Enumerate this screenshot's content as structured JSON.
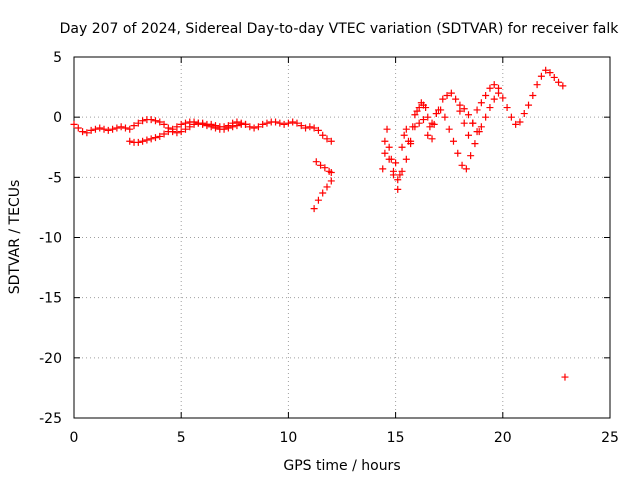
{
  "chart_data": {
    "type": "scatter",
    "title": "Day 207 of 2024, Sidereal Day-to-day VTEC variation (SDTVAR) for receiver falk",
    "xlabel": "GPS time / hours",
    "ylabel": "SDTVAR / TECUs",
    "xlim": [
      0,
      25
    ],
    "ylim": [
      -25,
      5
    ],
    "x_ticks": [
      "0",
      "5",
      "10",
      "15",
      "20",
      "25"
    ],
    "y_ticks": [
      "5",
      "0",
      "-5",
      "-10",
      "-15",
      "-20",
      "-25"
    ],
    "grid": true,
    "marker": "+",
    "series": [
      {
        "name": "SDTVAR",
        "color": "#ff0000",
        "x": [
          0.0,
          0.2,
          0.4,
          0.6,
          0.8,
          1.0,
          1.2,
          1.4,
          1.6,
          1.8,
          2.0,
          2.2,
          2.4,
          2.6,
          2.8,
          3.0,
          3.2,
          3.4,
          3.6,
          3.8,
          4.0,
          4.2,
          4.4,
          4.6,
          4.8,
          5.0,
          5.2,
          5.4,
          5.6,
          5.8,
          6.0,
          6.2,
          6.4,
          6.6,
          6.8,
          7.0,
          7.2,
          7.4,
          7.6,
          7.8,
          8.0,
          8.2,
          8.4,
          8.6,
          8.8,
          9.0,
          9.2,
          9.4,
          9.6,
          9.8,
          10.0,
          10.2,
          10.4,
          10.6,
          10.8,
          11.0,
          11.2,
          11.4,
          11.6,
          11.8,
          12.0,
          2.6,
          2.8,
          3.0,
          3.2,
          3.4,
          3.6,
          3.8,
          4.0,
          4.2,
          4.4,
          4.6,
          4.8,
          5.0,
          5.2,
          5.4,
          5.6,
          5.8,
          6.0,
          6.2,
          6.4,
          6.6,
          6.8,
          7.0,
          7.2,
          7.4,
          7.6,
          7.8,
          8.0,
          11.3,
          11.5,
          11.7,
          11.9,
          12.0,
          11.2,
          11.4,
          11.6,
          11.8,
          12.0,
          14.4,
          14.5,
          14.6,
          14.7,
          14.8,
          14.9,
          15.0,
          15.1,
          15.2,
          15.3,
          15.4,
          15.5,
          15.6,
          15.7,
          15.8,
          15.9,
          16.0,
          16.1,
          16.2,
          16.3,
          16.4,
          16.5,
          16.6,
          16.7,
          16.8,
          16.9,
          17.0,
          17.2,
          17.4,
          17.6,
          17.8,
          18.0,
          18.2,
          18.4,
          18.6,
          18.8,
          19.0,
          19.2,
          19.4,
          19.6,
          19.8,
          20.0,
          20.2,
          20.4,
          20.6,
          20.8,
          21.0,
          21.2,
          21.4,
          21.6,
          21.8,
          22.0,
          22.2,
          22.4,
          22.6,
          22.8,
          14.5,
          14.7,
          14.9,
          15.1,
          15.3,
          15.5,
          15.7,
          15.9,
          16.1,
          16.3,
          16.5,
          16.7,
          16.9,
          17.1,
          17.3,
          17.5,
          17.7,
          17.9,
          18.1,
          18.3,
          18.5,
          18.7,
          18.9,
          18.0,
          18.2,
          18.4,
          18.6,
          18.8,
          19.0,
          19.2,
          19.4,
          19.6,
          19.8,
          22.9
        ],
        "y": [
          -0.6,
          -0.9,
          -1.2,
          -1.3,
          -1.1,
          -1.0,
          -0.9,
          -1.0,
          -1.1,
          -1.0,
          -0.9,
          -0.8,
          -0.9,
          -1.0,
          -0.7,
          -0.5,
          -0.3,
          -0.2,
          -0.2,
          -0.3,
          -0.4,
          -0.6,
          -0.9,
          -1.2,
          -1.3,
          -1.2,
          -1.0,
          -0.8,
          -0.6,
          -0.5,
          -0.5,
          -0.6,
          -0.6,
          -0.7,
          -0.8,
          -0.8,
          -0.7,
          -0.5,
          -0.4,
          -0.5,
          -0.6,
          -0.8,
          -0.9,
          -0.8,
          -0.6,
          -0.5,
          -0.4,
          -0.4,
          -0.5,
          -0.6,
          -0.5,
          -0.4,
          -0.5,
          -0.7,
          -0.9,
          -0.8,
          -0.9,
          -1.1,
          -1.5,
          -1.8,
          -2.0,
          -2.0,
          -2.1,
          -2.1,
          -2.0,
          -1.9,
          -1.8,
          -1.7,
          -1.6,
          -1.4,
          -1.2,
          -1.0,
          -0.8,
          -0.6,
          -0.5,
          -0.4,
          -0.4,
          -0.5,
          -0.6,
          -0.7,
          -0.8,
          -0.9,
          -1.0,
          -1.0,
          -0.9,
          -0.8,
          -0.7,
          -0.6,
          -0.6,
          -3.7,
          -4.0,
          -4.2,
          -4.5,
          -4.6,
          -7.6,
          -6.9,
          -6.3,
          -5.8,
          -5.3,
          -4.3,
          -2.0,
          -1.0,
          -2.5,
          -3.5,
          -4.5,
          -3.8,
          -5.2,
          -4.8,
          -2.5,
          -1.5,
          -1.0,
          -2.0,
          -2.2,
          -0.8,
          0.2,
          0.5,
          0.8,
          1.2,
          1.0,
          0.8,
          0.0,
          -0.8,
          -1.8,
          -0.6,
          0.3,
          0.6,
          1.5,
          1.8,
          2.0,
          1.5,
          0.5,
          -0.5,
          -1.5,
          -0.5,
          0.6,
          1.2,
          1.8,
          2.4,
          2.7,
          2.4,
          1.6,
          0.8,
          0.0,
          -0.6,
          -0.4,
          0.3,
          1.0,
          1.8,
          2.7,
          3.4,
          3.9,
          3.7,
          3.3,
          2.9,
          2.6,
          -3.0,
          -3.5,
          -4.8,
          -6.0,
          -4.5,
          -3.5,
          -2.0,
          -0.8,
          -0.5,
          -0.2,
          -1.5,
          -0.5,
          0.3,
          0.6,
          0.0,
          -1.0,
          -2.0,
          -3.0,
          -4.0,
          -4.3,
          -3.2,
          -2.2,
          -1.2,
          1.0,
          0.7,
          0.2,
          -0.5,
          -1.2,
          -0.8,
          0.0,
          0.8,
          1.5,
          2.0,
          -21.6
        ]
      }
    ]
  }
}
